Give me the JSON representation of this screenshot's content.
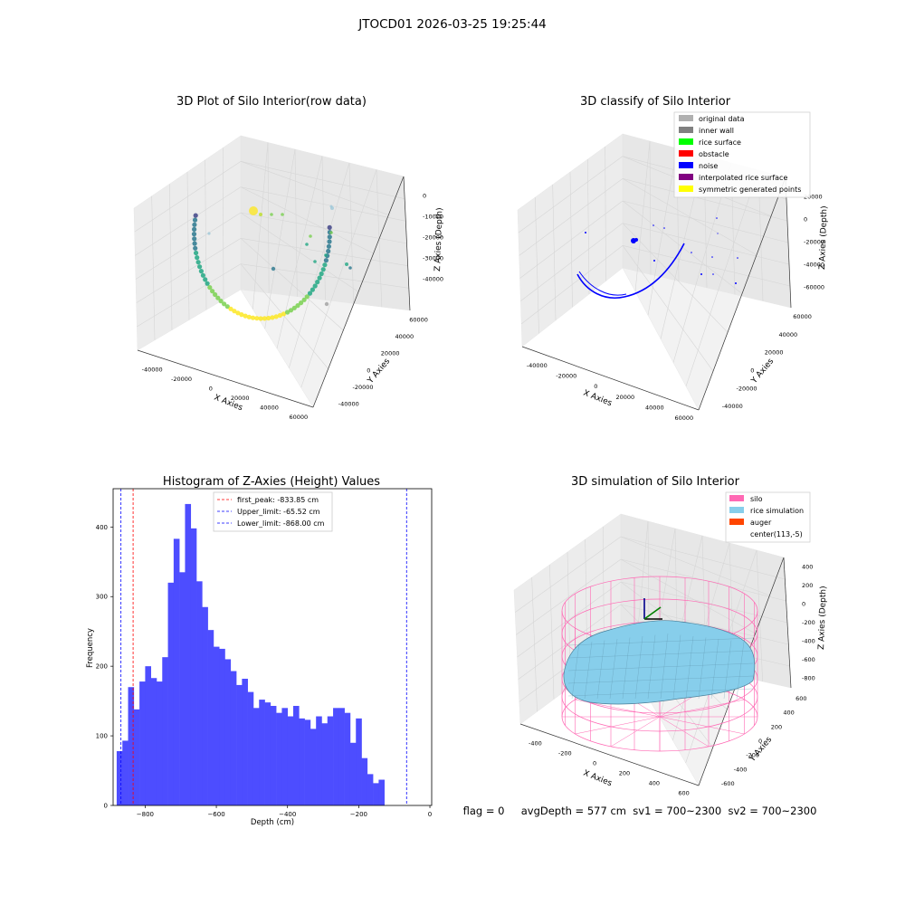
{
  "figure_title": "JTOCD01 2026-03-25 19:25:44",
  "status_line": "flag = 0     avgDepth = 577 cm  sv1 = 700~2300  sv2 = 700~2300",
  "colors": {
    "histogram_bar": "#4d4dff",
    "first_peak_line": "#ff0000",
    "limit_line": "#0000ff",
    "silo_wire": "#ff69b4",
    "rice_fill": "#87ceeb",
    "noise": "#0000ff"
  },
  "plot1": {
    "title": "3D Plot of Silo Interior(row data)",
    "xlabel": "X Axies",
    "ylabel": "Y Axies",
    "zlabel": "Z Axies (Depth)",
    "xticks": [
      "-40000",
      "-20000",
      "0",
      "20000",
      "40000",
      "60000"
    ],
    "yticks": [
      "-40000",
      "-20000",
      "0",
      "20000",
      "40000",
      "60000"
    ],
    "zticks": [
      "0",
      "-10000",
      "-20000",
      "-30000",
      "-40000"
    ]
  },
  "plot2": {
    "title": "3D classify of Silo Interior",
    "xlabel": "X Axies",
    "ylabel": "Y Axies",
    "zlabel": "Z Axies (Depth)",
    "xticks": [
      "-40000",
      "-20000",
      "0",
      "20000",
      "40000",
      "60000"
    ],
    "yticks": [
      "-40000",
      "-20000",
      "0",
      "20000",
      "40000",
      "60000"
    ],
    "zticks": [
      "20000",
      "0",
      "-20000",
      "-40000",
      "-60000"
    ],
    "legend": [
      {
        "label": "original data",
        "color": "#b0b0b0"
      },
      {
        "label": "inner wall",
        "color": "#808080"
      },
      {
        "label": "rice surface",
        "color": "#00ff00"
      },
      {
        "label": "obstacle",
        "color": "#ff0000"
      },
      {
        "label": "noise",
        "color": "#0000ff"
      },
      {
        "label": "interpolated rice surface",
        "color": "#800080"
      },
      {
        "label": "symmetric generated points",
        "color": "#ffff00"
      }
    ]
  },
  "plot4": {
    "title": "3D simulation of Silo Interior",
    "xlabel": "X Axies",
    "ylabel": "Y Axies",
    "zlabel": "Z Axies (Depth)",
    "xticks": [
      "-400",
      "-200",
      "0",
      "200",
      "400",
      "600"
    ],
    "yticks": [
      "-600",
      "-400",
      "-200",
      "0",
      "200",
      "400",
      "600"
    ],
    "zticks": [
      "400",
      "200",
      "0",
      "-200",
      "-400",
      "-600",
      "-800"
    ],
    "legend": [
      {
        "label": "silo",
        "color": "#ff69b4"
      },
      {
        "label": "rice simulation",
        "color": "#87ceeb"
      },
      {
        "label": "auger",
        "color": "#ff4500"
      },
      {
        "label": "center(113,-5)",
        "color": ""
      }
    ]
  },
  "chart_data": [
    {
      "type": "bar",
      "title": "Histogram of Z-Axies (Height) Values",
      "xlabel": "Depth (cm)",
      "ylabel": "Frequency",
      "bin_start": -880,
      "bin_width": 16,
      "values": [
        78,
        93,
        170,
        138,
        178,
        200,
        183,
        178,
        213,
        320,
        383,
        335,
        433,
        398,
        322,
        285,
        252,
        228,
        225,
        210,
        193,
        173,
        182,
        163,
        140,
        152,
        148,
        143,
        133,
        140,
        128,
        143,
        125,
        123,
        110,
        128,
        118,
        128,
        140,
        140,
        133,
        90,
        125,
        68,
        45,
        32,
        37
      ],
      "xlim": [
        -890,
        5
      ],
      "ylim": [
        0,
        455
      ],
      "xticks": [
        -800,
        -600,
        -400,
        -200,
        0
      ],
      "yticks": [
        0,
        100,
        200,
        300,
        400
      ],
      "lines": [
        {
          "label": "first_peak: -833.85 cm",
          "x": -833.85,
          "color": "#ff0000"
        },
        {
          "label": "Upper_limit: -65.52 cm",
          "x": -65.52,
          "color": "#0000ff"
        },
        {
          "label": "Lower_limit: -868.00 cm",
          "x": -868.0,
          "color": "#0000ff"
        }
      ],
      "legend_position": "top-center"
    }
  ]
}
